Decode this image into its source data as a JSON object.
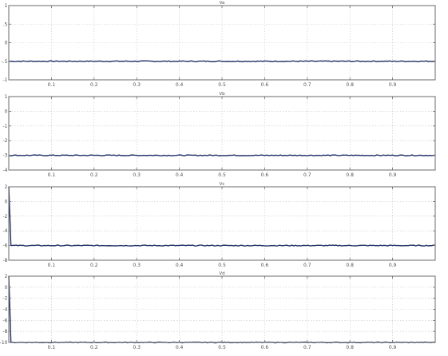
{
  "chart_data": [
    {
      "type": "line",
      "title": "Va",
      "xlabel": "",
      "ylabel": "",
      "xlim": [
        0,
        0.2
      ],
      "ylim": [
        -1,
        1
      ],
      "xticks": [
        0.02,
        0.04,
        0.06,
        0.08,
        0.1,
        0.12,
        0.14,
        0.16,
        0.18
      ],
      "xtick_labels": [
        "0.1",
        "0.2",
        "0.3",
        "0.4",
        "0.5",
        "0.6",
        "0.7",
        "0.8",
        "0.9"
      ],
      "yticks": [
        -1,
        -0.5,
        0,
        0.5,
        1
      ],
      "ytick_labels": [
        "-1",
        "-.5",
        "0",
        ".5",
        "1"
      ],
      "grid": true,
      "series": [
        {
          "x": [
            0,
            0.2
          ],
          "y": [
            -0.5,
            -0.5
          ],
          "color": "#1f2f66"
        }
      ]
    },
    {
      "type": "line",
      "title": "Vb",
      "xlabel": "",
      "ylabel": "",
      "xlim": [
        0,
        0.2
      ],
      "ylim": [
        -4,
        1
      ],
      "xticks": [
        0.02,
        0.04,
        0.06,
        0.08,
        0.1,
        0.12,
        0.14,
        0.16,
        0.18
      ],
      "xtick_labels": [
        "0.1",
        "0.2",
        "0.3",
        "0.4",
        "0.5",
        "0.6",
        "0.7",
        "0.8",
        "0.9"
      ],
      "yticks": [
        -4,
        -3,
        -2,
        -1,
        0,
        1
      ],
      "ytick_labels": [
        "-4",
        "-3",
        "-2",
        "-1",
        "0",
        "1"
      ],
      "grid": true,
      "series": [
        {
          "x": [
            0,
            0.2
          ],
          "y": [
            -3,
            -3
          ],
          "color": "#1f2f66"
        }
      ]
    },
    {
      "type": "line",
      "title": "Vc",
      "xlabel": "",
      "ylabel": "",
      "xlim": [
        0,
        0.2
      ],
      "ylim": [
        -8,
        2
      ],
      "xticks": [
        0.02,
        0.04,
        0.06,
        0.08,
        0.1,
        0.12,
        0.14,
        0.16,
        0.18
      ],
      "xtick_labels": [
        "0.1",
        "0.2",
        "0.3",
        "0.4",
        "0.5",
        "0.6",
        "0.7",
        "0.8",
        "0.9"
      ],
      "yticks": [
        -8,
        -6,
        -4,
        -2,
        0,
        2
      ],
      "ytick_labels": [
        "-8",
        "-6",
        "-4",
        "-2",
        "0",
        "2"
      ],
      "grid": true,
      "series": [
        {
          "x": [
            0,
            0.001,
            0.2
          ],
          "y": [
            2,
            -6,
            -6
          ],
          "color": "#1f2f66"
        }
      ]
    },
    {
      "type": "line",
      "title": "Vd",
      "xlabel": "",
      "ylabel": "",
      "xlim": [
        0,
        0.2
      ],
      "ylim": [
        -10,
        2
      ],
      "xticks": [
        0.02,
        0.04,
        0.06,
        0.08,
        0.1,
        0.12,
        0.14,
        0.16,
        0.18
      ],
      "xtick_labels": [
        "0.1",
        "0.2",
        "0.3",
        "0.4",
        "0.5",
        "0.6",
        "0.7",
        "0.8",
        "0.9"
      ],
      "yticks": [
        -10,
        -8,
        -6,
        -4,
        -2,
        0,
        2
      ],
      "ytick_labels": [
        "-10",
        "-8",
        "-6",
        "-4",
        "-2",
        "0",
        "2"
      ],
      "grid": true,
      "series": [
        {
          "x": [
            0,
            0.001,
            0.2
          ],
          "y": [
            2,
            -10,
            -10
          ],
          "color": "#1f2f66"
        }
      ]
    }
  ]
}
